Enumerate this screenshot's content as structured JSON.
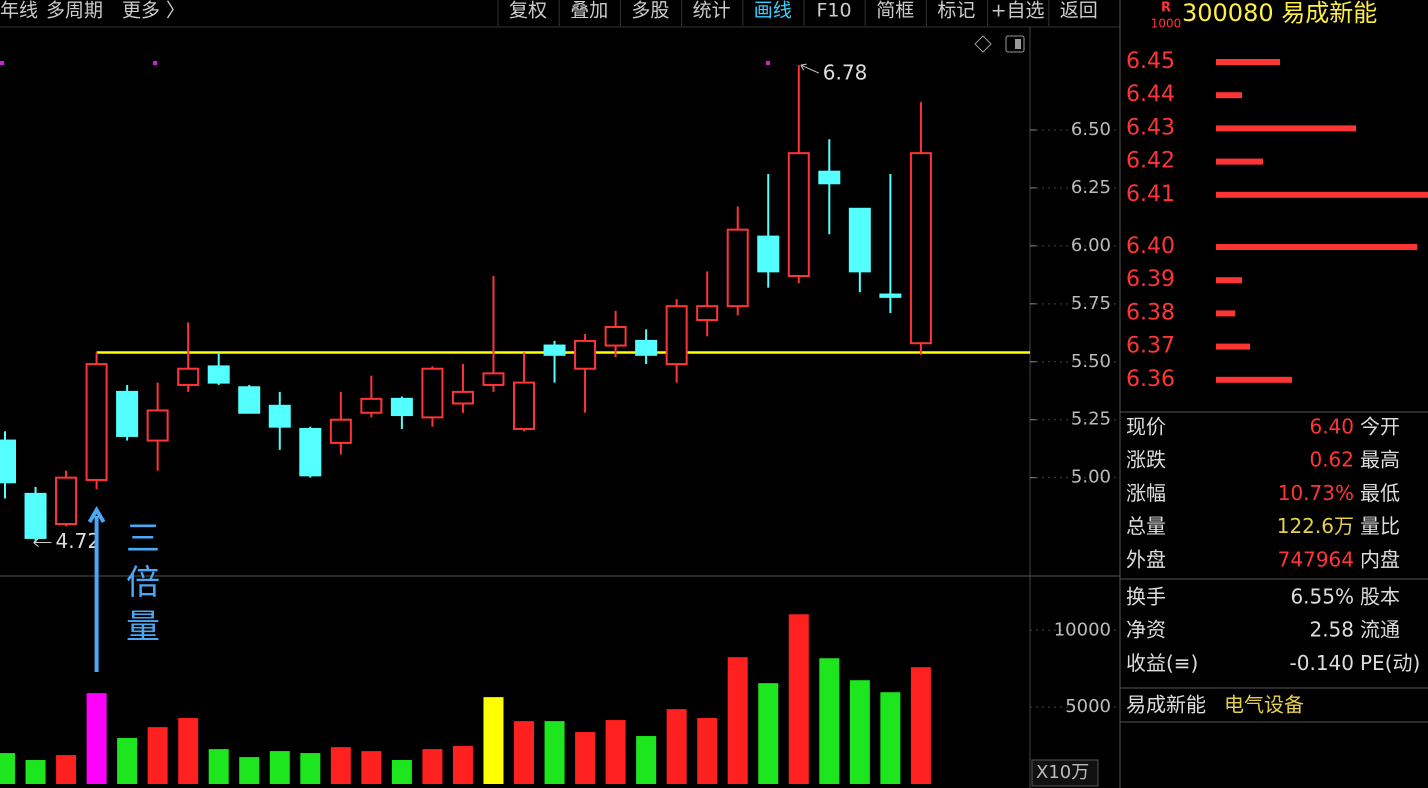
{
  "toolbar": {
    "left": [
      "年线",
      "多周期",
      "更多 〉"
    ],
    "buttons": [
      "复权",
      "叠加",
      "多股",
      "统计",
      "画线",
      "F10",
      "简框",
      "标记",
      "+自选",
      "返回"
    ],
    "active": 4
  },
  "chart_data": [
    {
      "type": "candlestick",
      "categories": [
        null,
        null,
        null,
        null,
        null,
        null,
        null,
        null,
        null,
        null,
        null,
        null,
        null,
        null,
        null,
        null,
        null,
        null,
        null,
        null,
        null,
        null,
        null,
        null,
        null,
        null,
        null,
        null,
        null,
        null,
        null
      ],
      "open": [
        5.16,
        4.93,
        4.8,
        4.99,
        5.37,
        5.16,
        5.4,
        5.48,
        5.39,
        5.31,
        5.21,
        5.15,
        5.28,
        5.34,
        5.26,
        5.32,
        5.4,
        5.21,
        5.57,
        5.47,
        5.57,
        5.59,
        5.49,
        5.68,
        5.74,
        6.04,
        5.87,
        6.32,
        6.16,
        5.79,
        5.58
      ],
      "high": [
        5.2,
        4.96,
        5.03,
        5.54,
        5.4,
        5.41,
        5.67,
        5.54,
        5.4,
        5.37,
        5.22,
        5.37,
        5.44,
        5.35,
        5.48,
        5.49,
        5.87,
        5.54,
        5.59,
        5.62,
        5.72,
        5.64,
        5.77,
        5.89,
        6.17,
        6.31,
        6.78,
        6.46,
        6.16,
        6.31,
        6.62
      ],
      "low": [
        4.91,
        4.72,
        4.79,
        4.95,
        5.16,
        5.03,
        5.37,
        5.4,
        5.28,
        5.12,
        5.0,
        5.1,
        5.26,
        5.21,
        5.22,
        5.28,
        5.37,
        5.2,
        5.41,
        5.28,
        5.52,
        5.49,
        5.41,
        5.61,
        5.7,
        5.82,
        5.84,
        6.05,
        5.8,
        5.71,
        5.53
      ],
      "close": [
        4.98,
        4.74,
        5.0,
        5.49,
        5.18,
        5.29,
        5.47,
        5.41,
        5.28,
        5.22,
        5.01,
        5.25,
        5.34,
        5.27,
        5.47,
        5.37,
        5.45,
        5.41,
        5.53,
        5.59,
        5.65,
        5.53,
        5.74,
        5.74,
        6.07,
        5.89,
        6.4,
        6.27,
        5.89,
        5.78,
        6.4
      ],
      "up_color": "#ff3535",
      "down_color": "#54ffff",
      "ylim": [
        4.58,
        6.94
      ],
      "yticks": [
        {
          "value": 5,
          "label": "5.00"
        },
        {
          "value": 5.25,
          "label": "5.25"
        },
        {
          "value": 5.5,
          "label": "5.50"
        },
        {
          "value": 5.75,
          "label": "5.75"
        },
        {
          "value": 6,
          "label": "6.00"
        },
        {
          "value": 6.25,
          "label": "6.25"
        },
        {
          "value": 6.5,
          "label": "6.50"
        }
      ],
      "grid": true,
      "support_line": 5.54,
      "support_color": "#ffff00",
      "annotation": "三倍量",
      "annotation_color": "#4aa8f5"
    },
    {
      "type": "bar",
      "categories": [
        null,
        null,
        null,
        null,
        null,
        null,
        null,
        null,
        null,
        null,
        null,
        null,
        null,
        null,
        null,
        null,
        null,
        null,
        null,
        null,
        null,
        null,
        null,
        null,
        null,
        null,
        null,
        null,
        null,
        null,
        null
      ],
      "values": [
        2010,
        1560,
        1880,
        5910,
        2990,
        3700,
        4290,
        2270,
        1750,
        2140,
        2010,
        2400,
        2140,
        1560,
        2270,
        2470,
        5650,
        4090,
        4090,
        3380,
        4160,
        3120,
        4870,
        4290,
        8250,
        6560,
        11040,
        8180,
        6750,
        5970,
        7600
      ],
      "colors": [
        "#1ee61e",
        "#1ee61e",
        "#ff2020",
        "#ff00ff",
        "#1ee61e",
        "#ff2020",
        "#ff2020",
        "#1ee61e",
        "#1ee61e",
        "#1ee61e",
        "#1ee61e",
        "#ff2020",
        "#ff2020",
        "#1ee61e",
        "#ff2020",
        "#ff2020",
        "#ffff00",
        "#ff2020",
        "#1ee61e",
        "#ff2020",
        "#ff2020",
        "#1ee61e",
        "#ff2020",
        "#ff2020",
        "#ff2020",
        "#1ee61e",
        "#ff2020",
        "#1ee61e",
        "#1ee61e",
        "#1ee61e",
        "#ff2020"
      ],
      "ylim": [
        0,
        13400
      ],
      "yticks": [
        5000,
        10000
      ],
      "unit_label": "X10万"
    }
  ],
  "stock": {
    "badge": "R",
    "badge_sub": "1000",
    "code_name": "300080 易成新能"
  },
  "order_book": {
    "color": "#ff3535",
    "asks": [
      {
        "price": "6.45",
        "volume": 64
      },
      {
        "price": "6.44",
        "volume": 26
      },
      {
        "price": "6.43",
        "volume": 140
      },
      {
        "price": "6.42",
        "volume": 47
      },
      {
        "price": "6.41",
        "volume": 212
      }
    ],
    "bids": [
      {
        "price": "6.40",
        "volume": 201
      },
      {
        "price": "6.39",
        "volume": 26
      },
      {
        "price": "6.38",
        "volume": 19
      },
      {
        "price": "6.37",
        "volume": 34
      },
      {
        "price": "6.36",
        "volume": 76
      }
    ]
  },
  "quote": {
    "rows": [
      [
        "现价",
        "6.40",
        "今开"
      ],
      [
        "涨跌",
        "0.62",
        "最高"
      ],
      [
        "涨幅",
        "10.73%",
        "最低"
      ],
      [
        "总量",
        "122.6万",
        "量比"
      ],
      [
        "外盘",
        "747964",
        "内盘"
      ]
    ],
    "rows2": [
      [
        "换手",
        "6.55%",
        "股本"
      ],
      [
        "净资",
        "2.58",
        "流通"
      ],
      [
        "收益(≡)",
        "-0.140",
        "PE(动)"
      ]
    ]
  },
  "industry": {
    "name": "易成新能",
    "sector": "电气设备"
  }
}
